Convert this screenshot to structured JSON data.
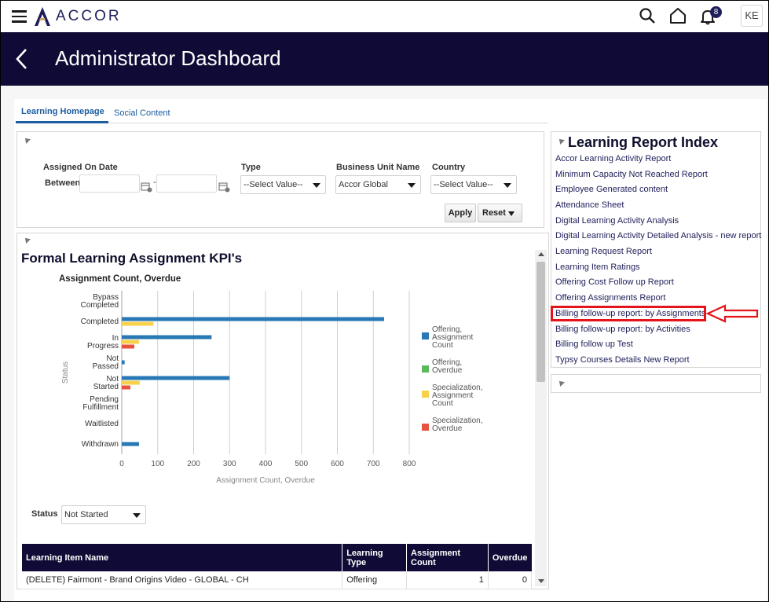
{
  "header": {
    "logo_text": "ACCOR",
    "notification_count": "8",
    "avatar_initials": "KE"
  },
  "banner": {
    "title": "Administrator Dashboard"
  },
  "tabs": [
    {
      "label": "Learning Homepage",
      "active": true
    },
    {
      "label": "Social Content",
      "active": false
    }
  ],
  "filters": {
    "assigned_on_date_label": "Assigned On Date",
    "between_label": "Between",
    "range_separator": "-",
    "type_label": "Type",
    "type_value": "--Select Value--",
    "business_unit_label": "Business Unit Name",
    "business_unit_value": "Accor Global",
    "country_label": "Country",
    "country_value": "--Select Value--",
    "apply_label": "Apply",
    "reset_label": "Reset"
  },
  "kpi": {
    "title": "Formal Learning Assignment KPI's",
    "status_label": "Status",
    "status_value": "Not Started"
  },
  "chart_data": {
    "type": "bar",
    "orientation": "horizontal",
    "title": "Assignment Count, Overdue",
    "xlabel": "Assignment Count, Overdue",
    "ylabel": "Status",
    "xlim": [
      0,
      800
    ],
    "xticks": [
      0,
      100,
      200,
      300,
      400,
      500,
      600,
      700,
      800
    ],
    "categories": [
      [
        "Bypass",
        "Completed"
      ],
      [
        "Completed"
      ],
      [
        "In",
        "Progress"
      ],
      [
        "Not",
        "Passed"
      ],
      [
        "Not",
        "Started"
      ],
      [
        "Pending",
        "Fulfillment"
      ],
      [
        "Waitlisted"
      ],
      [
        "Withdrawn"
      ]
    ],
    "series": [
      {
        "name": [
          "Offering,",
          "Assignment",
          "Count"
        ],
        "color": "#2878b5",
        "values": [
          0,
          730,
          250,
          8,
          300,
          0,
          0,
          48
        ]
      },
      {
        "name": [
          "Offering,",
          "Overdue"
        ],
        "color": "#5cb85c",
        "values": [
          0,
          0,
          0,
          0,
          0,
          0,
          0,
          0
        ]
      },
      {
        "name": [
          "Specialization,",
          "Assignment",
          "Count"
        ],
        "color": "#f7d14a",
        "values": [
          0,
          88,
          48,
          0,
          50,
          0,
          0,
          0
        ]
      },
      {
        "name": [
          "Specialization,",
          "Overdue"
        ],
        "color": "#e8533f",
        "values": [
          0,
          0,
          35,
          0,
          24,
          0,
          0,
          0
        ]
      }
    ],
    "grid": true,
    "legend": "right"
  },
  "table": {
    "headers": [
      "Learning Item Name",
      "Learning Type",
      "Assignment Count",
      "Overdue"
    ],
    "headers_html_lines": [
      [
        "Learning Item Name"
      ],
      [
        "Learning",
        "Type"
      ],
      [
        "Assignment",
        "Count"
      ],
      [
        "Overdue"
      ]
    ],
    "rows": [
      [
        "(DELETE) Fairmont - Brand Origins Video - GLOBAL - CH",
        "Offering",
        "1",
        "0"
      ]
    ]
  },
  "report_index": {
    "title": "Learning Report Index",
    "links": [
      "Accor Learning Activity Report",
      "Minimum Capacity Not Reached Report",
      "Employee Generated content",
      "Attendance Sheet",
      "Digital Learning Activity Analysis",
      "Digital Learning Activity Detailed Analysis - new report",
      "Learning Request Report",
      "Learning Item Ratings",
      "Offering Cost Follow up Report",
      "Offering Assignments Report",
      "Billing follow-up report: by Assignments",
      "Billing follow-up report: by Activities",
      "Billing follow up Test",
      "Typsy Courses Details New Report"
    ],
    "highlighted_link": "Billing follow-up report: by Assignments"
  },
  "colors": {
    "banner": "#0f0b36",
    "link": "#1e1e5a",
    "tab_accent": "#1c5ca0",
    "annotation": "#e3141b"
  },
  "icons": [
    "hamburger-icon",
    "search-icon",
    "home-icon",
    "bell-icon",
    "back-chevron-icon",
    "calendar-icon",
    "dropdown-caret-icon",
    "collapse-triangle-icon",
    "red-arrow-icon"
  ]
}
